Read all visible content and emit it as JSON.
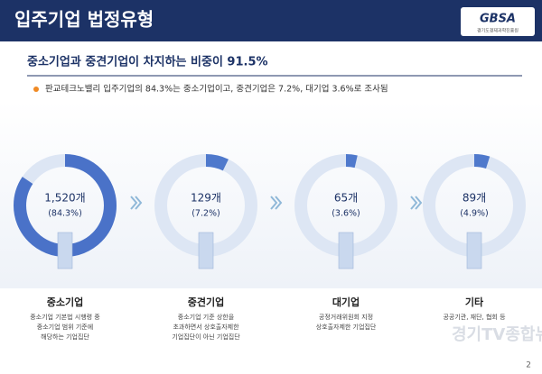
{
  "header": {
    "title": "입주기업 법정유형",
    "logo": "GBSA",
    "logo_caption": "경기도경제과학진흥원"
  },
  "subtitle": "중소기업과 중견기업이 차지하는 비중이 91.5%",
  "bullet": "판교테크노밸리 입주기업의 84.3%는 중소기업이고, 중견기업은 7.2%, 대기업 3.6%로 조사됨",
  "page_number": "2",
  "watermark": "경기TV종합뉴스",
  "chart_data": [
    {
      "type": "donut",
      "title": "중소기업",
      "values": [
        84.3
      ],
      "value_labels": [
        "(84.3%)"
      ],
      "count_label": "1,520개",
      "color": "#4a72c8",
      "track_color": "#dde6f4",
      "description": [
        "중소기업 기본법 시행령 중",
        "중소기업 범위 기준에",
        "해당하는 기업집단"
      ]
    },
    {
      "type": "donut",
      "title": "중견기업",
      "values": [
        7.2
      ],
      "value_labels": [
        "(7.2%)"
      ],
      "count_label": "129개",
      "color": "#4f79cc",
      "track_color": "#dde6f4",
      "description": [
        "중소기업 기준 상한을",
        "초과하면서 상호출자제한",
        "기업집단이 아닌 기업집단"
      ]
    },
    {
      "type": "donut",
      "title": "대기업",
      "values": [
        3.6
      ],
      "value_labels": [
        "(3.6%)"
      ],
      "count_label": "65개",
      "color": "#4f79cc",
      "track_color": "#dde6f4",
      "description": [
        "공정거래위원회 지정",
        "상호출자제한 기업집단"
      ]
    },
    {
      "type": "donut",
      "title": "기타",
      "values": [
        4.9
      ],
      "value_labels": [
        "(4.9%)"
      ],
      "count_label": "89개",
      "color": "#4f79cc",
      "track_color": "#dde6f4",
      "description": [
        "공공기관, 재단, 협회 등"
      ]
    }
  ]
}
